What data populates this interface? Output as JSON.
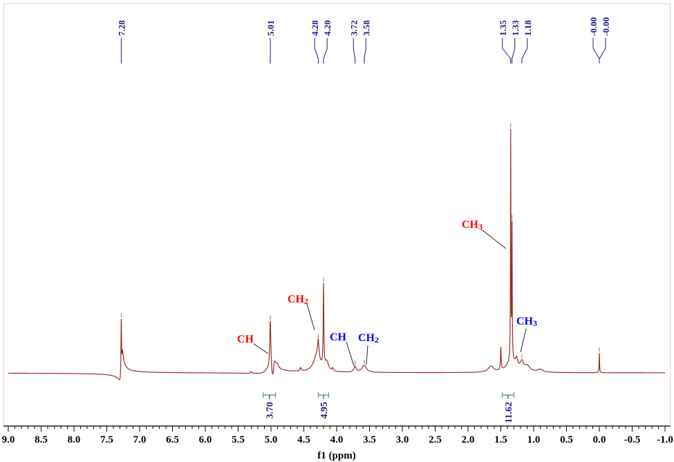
{
  "chart_data": {
    "type": "line",
    "title": "",
    "xlabel": "f1 (ppm)",
    "ylabel": "",
    "xlim": [
      9.0,
      -1.0
    ],
    "x_reversed": true,
    "x_ticks": [
      "9.0",
      "8.5",
      "8.0",
      "7.5",
      "7.0",
      "6.5",
      "6.0",
      "5.5",
      "5.0",
      "4.5",
      "4.0",
      "3.5",
      "3.0",
      "2.5",
      "2.0",
      "1.5",
      "1.0",
      "0.5",
      "0.0",
      "-0.5",
      "-1.0"
    ],
    "grid": false,
    "peak_labels": [
      "7.28",
      "5.01",
      "4.28",
      "4.20",
      "3.72",
      "3.58",
      "1.35",
      "1.33",
      "1.18",
      "-0.00",
      "-0.00"
    ],
    "peaks": [
      {
        "ppm": 7.28,
        "intensity": 25
      },
      {
        "ppm": 5.01,
        "intensity": 21
      },
      {
        "ppm": 4.28,
        "intensity": 14
      },
      {
        "ppm": 4.2,
        "intensity": 33
      },
      {
        "ppm": 3.72,
        "intensity": 2
      },
      {
        "ppm": 3.58,
        "intensity": 2.5
      },
      {
        "ppm": 1.5,
        "intensity": 8
      },
      {
        "ppm": 1.35,
        "intensity": 100
      },
      {
        "ppm": 1.33,
        "intensity": 87
      },
      {
        "ppm": 1.18,
        "intensity": 5
      },
      {
        "ppm": 0.0,
        "intensity": 7
      }
    ],
    "integrals": [
      {
        "from": 5.12,
        "to": 4.93,
        "value": "3.70"
      },
      {
        "from": 4.28,
        "to": 4.12,
        "value": "4.95"
      },
      {
        "from": 1.48,
        "to": 1.3,
        "value": "11.62"
      }
    ],
    "annotations": [
      {
        "text": "CH",
        "sub": "",
        "color": "#ff0000",
        "ppm": 5.03
      },
      {
        "text": "CH",
        "sub": "2",
        "color": "#ff0000",
        "ppm": 4.28
      },
      {
        "text": "CH",
        "sub": "",
        "color": "#0000ff",
        "ppm": 3.72
      },
      {
        "text": "CH",
        "sub": "2",
        "color": "#0000ff",
        "ppm": 3.58
      },
      {
        "text": "CH",
        "sub": "3",
        "color": "#ff0000",
        "ppm": 1.36
      },
      {
        "text": "CH",
        "sub": "3",
        "color": "#0000ff",
        "ppm": 1.2
      }
    ],
    "colors": {
      "spectrum": "#9b2a2a",
      "peak_labels": "#1a1a8c",
      "integrals": "#3a9a3a"
    }
  }
}
